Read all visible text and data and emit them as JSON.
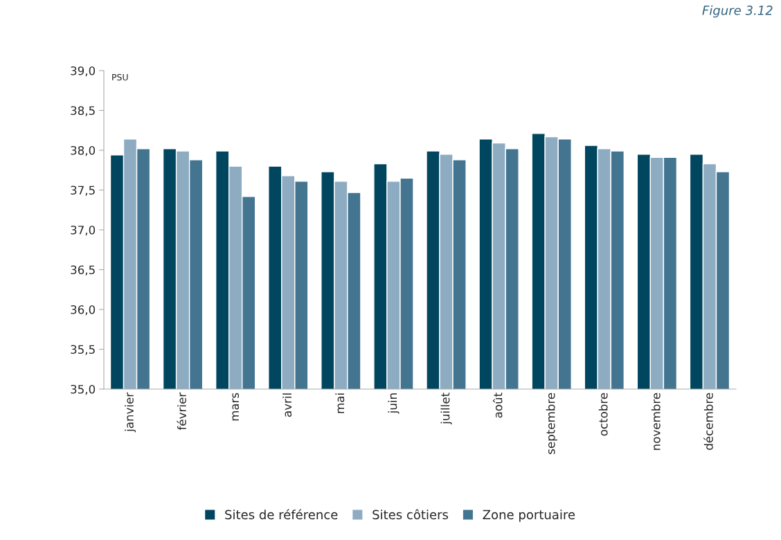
{
  "chart_data": {
    "type": "bar",
    "ylabel": "PSU",
    "categories": [
      "janvier",
      "février",
      "mars",
      "avril",
      "mai",
      "juin",
      "juillet",
      "août",
      "septembre",
      "octobre",
      "novembre",
      "décembre"
    ],
    "series": [
      {
        "name": "Sites de référence",
        "color": "#00465f",
        "values": [
          37.94,
          38.02,
          37.99,
          37.8,
          37.73,
          37.83,
          37.99,
          38.14,
          38.21,
          38.06,
          37.95,
          37.95
        ]
      },
      {
        "name": "Sites côtiers",
        "color": "#8eacc1",
        "values": [
          38.14,
          37.99,
          37.8,
          37.68,
          37.61,
          37.61,
          37.95,
          38.09,
          38.17,
          38.02,
          37.91,
          37.83
        ]
      },
      {
        "name": "Zone portuaire",
        "color": "#437591",
        "values": [
          38.02,
          37.88,
          37.42,
          37.61,
          37.47,
          37.65,
          37.88,
          38.02,
          38.14,
          37.99,
          37.91,
          37.73
        ]
      }
    ],
    "ylim": [
      35,
      39
    ],
    "yticks": [
      {
        "value": 35,
        "label": "35,0"
      },
      {
        "value": 35.5,
        "label": "35,5"
      },
      {
        "value": 36,
        "label": "36,0"
      },
      {
        "value": 36.5,
        "label": "36,5"
      },
      {
        "value": 37,
        "label": "37,0"
      },
      {
        "value": 37.5,
        "label": "37,5"
      },
      {
        "value": 38,
        "label": "38,0"
      },
      {
        "value": 38.5,
        "label": "38,5"
      },
      {
        "value": 39,
        "label": "39,0"
      }
    ],
    "annotations": [
      "Figure 3.12"
    ],
    "grid": false,
    "legend": "bottom"
  }
}
